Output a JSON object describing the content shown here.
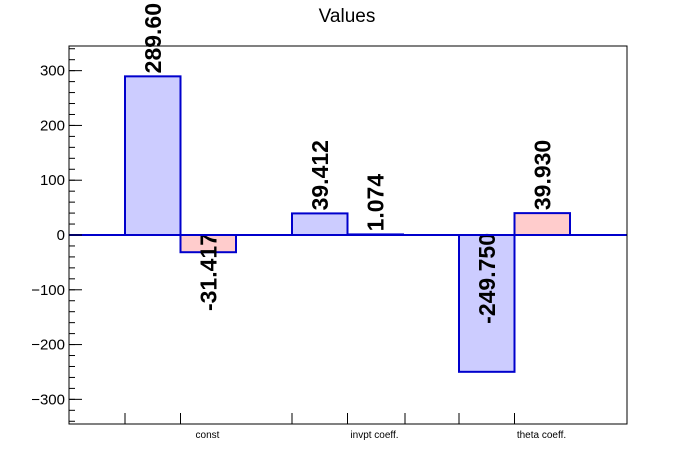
{
  "chart_data": {
    "type": "bar",
    "title": "Values",
    "xlabel": "",
    "ylabel": "",
    "categories": [
      "const",
      "invpt coeff.",
      "theta coeff."
    ],
    "series": [
      {
        "values": [
          289.6,
          39.412,
          -249.75
        ],
        "color": "#ccccff",
        "edge_color": "#0000cc"
      },
      {
        "values": [
          -31.417,
          1.074,
          39.93
        ],
        "color": "#ffcccc",
        "edge_color": "#0000cc"
      }
    ],
    "data_labels": [
      [
        "289.60",
        "39.412",
        "-249.750"
      ],
      [
        "-31.417",
        "1.074",
        "39.930"
      ]
    ],
    "ylim": [
      -345,
      345
    ],
    "yticks": [
      -300,
      -200,
      -100,
      0,
      100,
      200,
      300
    ],
    "ytick_labels": [
      "−300",
      "−200",
      "−100",
      "0",
      "100",
      "200",
      "300"
    ],
    "grid": false,
    "legend": "none"
  }
}
